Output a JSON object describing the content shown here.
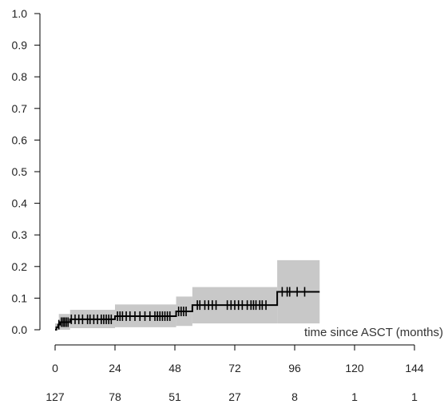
{
  "chart_data": {
    "type": "line",
    "subtype": "cumulative-incidence-step",
    "xlabel": "time since ASCT (months)",
    "ylabel": "",
    "xlim": [
      0,
      144
    ],
    "ylim": [
      0,
      1
    ],
    "x_ticks": [
      0,
      24,
      48,
      72,
      96,
      120,
      144
    ],
    "y_ticks": [
      0.0,
      0.1,
      0.2,
      0.3,
      0.4,
      0.5,
      0.6,
      0.7,
      0.8,
      0.9,
      1.0
    ],
    "y_tick_labels": [
      "0.0",
      "0.1",
      "0.2",
      "0.3",
      "0.4",
      "0.5",
      "0.6",
      "0.7",
      "0.8",
      "0.9",
      "1.0"
    ],
    "grid": false,
    "at_risk": {
      "times": [
        0,
        24,
        48,
        72,
        96,
        120,
        144
      ],
      "counts": [
        127,
        78,
        51,
        27,
        8,
        1,
        1
      ]
    },
    "series": [
      {
        "steps": [
          {
            "x": 0,
            "y": 0.0
          },
          {
            "x": 0.5,
            "y": 0.008
          },
          {
            "x": 1.2,
            "y": 0.016
          },
          {
            "x": 2.0,
            "y": 0.024
          },
          {
            "x": 6.0,
            "y": 0.033
          },
          {
            "x": 24.0,
            "y": 0.043
          },
          {
            "x": 48.5,
            "y": 0.058
          },
          {
            "x": 55.0,
            "y": 0.078
          },
          {
            "x": 89.0,
            "y": 0.12
          },
          {
            "x": 106.0,
            "y": 0.12
          }
        ],
        "ci": [
          {
            "x0": 0,
            "x1": 1.5,
            "lo": 0.0,
            "hi": 0.02
          },
          {
            "x0": 1.5,
            "x1": 6.0,
            "lo": 0.0,
            "hi": 0.05
          },
          {
            "x0": 6.0,
            "x1": 24.0,
            "lo": 0.005,
            "hi": 0.063
          },
          {
            "x0": 24.0,
            "x1": 48.5,
            "lo": 0.008,
            "hi": 0.08
          },
          {
            "x0": 48.5,
            "x1": 55.0,
            "lo": 0.012,
            "hi": 0.105
          },
          {
            "x0": 55.0,
            "x1": 89.0,
            "lo": 0.02,
            "hi": 0.135
          },
          {
            "x0": 89.0,
            "x1": 106.0,
            "lo": 0.02,
            "hi": 0.22
          }
        ],
        "censor_times": [
          1.5,
          2.5,
          3.2,
          3.8,
          4.5,
          5.2,
          6.5,
          8,
          9.5,
          11,
          13,
          14,
          15.5,
          17,
          18.5,
          19.5,
          20.5,
          21.5,
          22.5,
          25,
          26,
          27,
          28.5,
          30,
          32,
          34,
          36,
          38,
          40,
          41,
          42,
          43,
          44,
          45,
          46,
          49.5,
          50.5,
          51.5,
          52.5,
          57,
          58,
          60,
          61.5,
          63,
          64.5,
          69,
          70.5,
          72,
          73.5,
          75,
          77,
          78.5,
          79.5,
          80.5,
          82,
          83,
          84.5,
          91,
          93,
          94,
          97,
          100
        ]
      }
    ]
  }
}
